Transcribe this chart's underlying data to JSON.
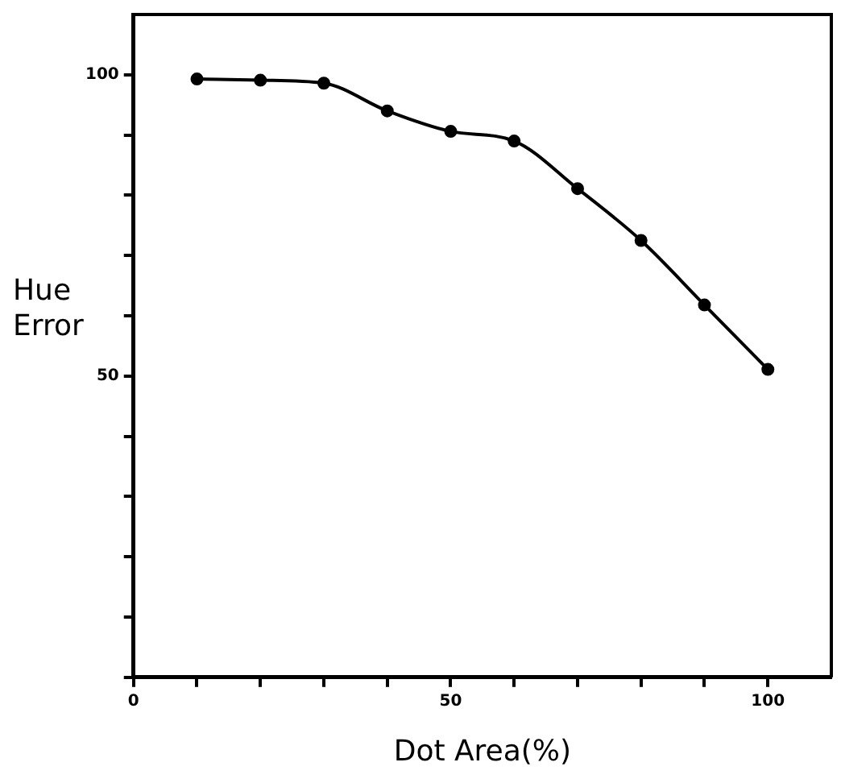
{
  "chart_data": {
    "type": "line",
    "xlabel": "Dot Area(%)",
    "ylabel": "Hue Error",
    "x": [
      10,
      20,
      30,
      40,
      50,
      60,
      70,
      80,
      90,
      100
    ],
    "series": [
      {
        "color": "#000000",
        "values": [
          99.3,
          99.1,
          98.6,
          94.0,
          90.6,
          89.0,
          81.1,
          72.5,
          61.8,
          51.1
        ]
      }
    ],
    "xlim": [
      0,
      110
    ],
    "xticks": [
      0,
      {
        "value": 10,
        "label": null
      },
      {
        "value": 20,
        "label": null
      },
      {
        "value": 30,
        "label": null
      },
      {
        "value": 40,
        "label": null
      },
      50,
      {
        "value": 60,
        "label": null
      },
      {
        "value": 70,
        "label": null
      },
      {
        "value": 80,
        "label": null
      },
      {
        "value": 90,
        "label": null
      },
      100
    ],
    "ylim": [
      0,
      110
    ],
    "yticks": [
      {
        "value": 0,
        "label": null
      },
      {
        "value": 10,
        "label": null
      },
      {
        "value": 20,
        "label": null
      },
      {
        "value": 30,
        "label": null
      },
      {
        "value": 40,
        "label": null
      },
      50,
      {
        "value": 60,
        "label": null
      },
      {
        "value": 70,
        "label": null
      },
      {
        "value": 80,
        "label": null
      },
      {
        "value": 90,
        "label": null
      },
      100
    ],
    "grid": false,
    "legend": false,
    "marker": "circle",
    "line_style": "solid"
  }
}
